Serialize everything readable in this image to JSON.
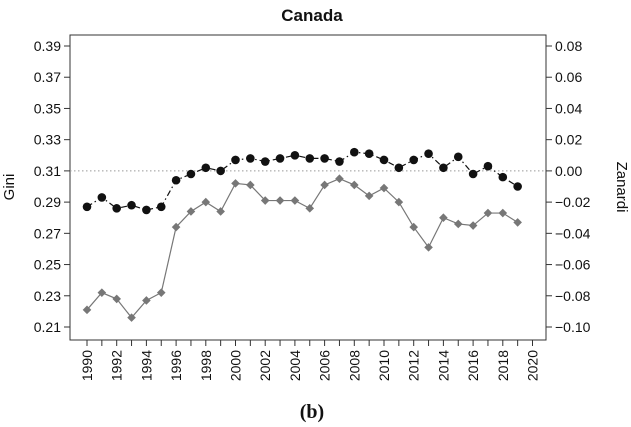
{
  "chart_data": {
    "type": "line",
    "title": "Canada",
    "caption": "(b)",
    "x": [
      1990,
      1991,
      1992,
      1993,
      1994,
      1995,
      1996,
      1997,
      1998,
      1999,
      2000,
      2001,
      2002,
      2003,
      2004,
      2005,
      2006,
      2007,
      2008,
      2009,
      2010,
      2011,
      2012,
      2013,
      2014,
      2015,
      2016,
      2017,
      2018,
      2019
    ],
    "xlim": [
      1990,
      2020
    ],
    "x_ticks": [
      "1990",
      "1992",
      "1994",
      "1996",
      "1998",
      "2000",
      "2002",
      "2004",
      "2006",
      "2008",
      "2010",
      "2012",
      "2014",
      "2016",
      "2018",
      "2020"
    ],
    "y_left": {
      "label": "Gini",
      "lim": [
        0.21,
        0.39
      ],
      "ticks": [
        "0.21",
        "0.23",
        "0.25",
        "0.27",
        "0.29",
        "0.31",
        "0.33",
        "0.35",
        "0.37",
        "0.39"
      ]
    },
    "y_right": {
      "label": "Zanardi",
      "lim": [
        -0.1,
        0.08
      ],
      "ticks": [
        "−0.10",
        "−0.08",
        "−0.06",
        "−0.04",
        "−0.02",
        "0.00",
        "0.02",
        "0.04",
        "0.06",
        "0.08"
      ],
      "reference_line": 0.0
    },
    "series": [
      {
        "axis": "left",
        "marker": "circle",
        "line_style": "dashed",
        "color": "#111111",
        "values": [
          0.287,
          0.293,
          0.286,
          0.288,
          0.285,
          0.287,
          0.304,
          0.308,
          0.312,
          0.31,
          0.317,
          0.318,
          0.316,
          0.318,
          0.32,
          0.318,
          0.318,
          0.316,
          0.322,
          0.321,
          0.317,
          0.312,
          0.317,
          0.321,
          0.312,
          0.319,
          0.308,
          0.313,
          0.306,
          0.3
        ]
      },
      {
        "axis": "right",
        "marker": "diamond",
        "line_style": "solid",
        "color": "#777777",
        "values": [
          -0.089,
          -0.078,
          -0.082,
          -0.094,
          -0.083,
          -0.078,
          -0.036,
          -0.026,
          -0.02,
          -0.026,
          -0.008,
          -0.009,
          -0.019,
          -0.019,
          -0.019,
          -0.024,
          -0.009,
          -0.005,
          -0.009,
          -0.016,
          -0.011,
          -0.02,
          -0.036,
          -0.049,
          -0.03,
          -0.034,
          -0.035,
          -0.027,
          -0.027,
          -0.033
        ]
      }
    ],
    "grid": false
  }
}
